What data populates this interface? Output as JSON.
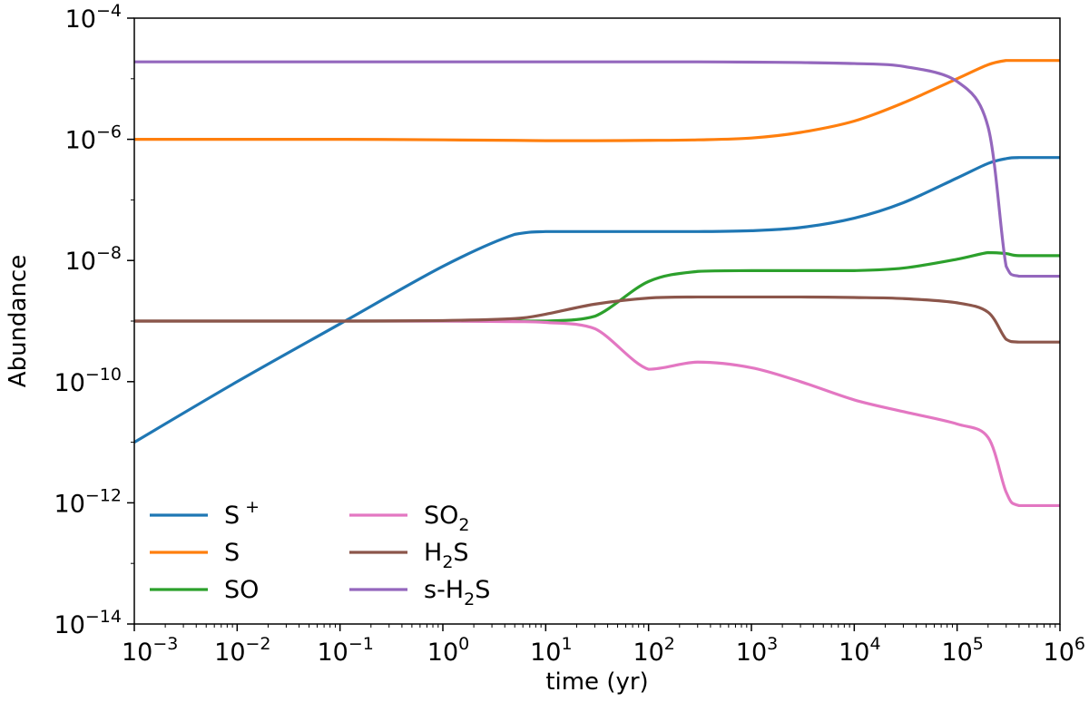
{
  "chart_data": {
    "type": "line",
    "title": "",
    "xlabel": "time (yr)",
    "ylabel": "Abundance",
    "xscale": "log",
    "yscale": "log",
    "xlim": [
      0.001,
      1000000
    ],
    "ylim": [
      1e-14,
      0.0001
    ],
    "grid": false,
    "legend_position": "lower-left",
    "legend_columns": 2,
    "x_ticks": [
      {
        "base": "10",
        "exp": "−3"
      },
      {
        "base": "10",
        "exp": "−2"
      },
      {
        "base": "10",
        "exp": "−1"
      },
      {
        "base": "10",
        "exp": "0"
      },
      {
        "base": "10",
        "exp": "1"
      },
      {
        "base": "10",
        "exp": "2"
      },
      {
        "base": "10",
        "exp": "3"
      },
      {
        "base": "10",
        "exp": "4"
      },
      {
        "base": "10",
        "exp": "5"
      },
      {
        "base": "10",
        "exp": "6"
      }
    ],
    "y_ticks": [
      {
        "base": "10",
        "exp": "−14"
      },
      {
        "base": "10",
        "exp": "−12"
      },
      {
        "base": "10",
        "exp": "−10"
      },
      {
        "base": "10",
        "exp": "−8"
      },
      {
        "base": "10",
        "exp": "−6"
      },
      {
        "base": "10",
        "exp": "−4"
      }
    ],
    "x": [
      0.001,
      0.01,
      0.1,
      1,
      5,
      10,
      30,
      100,
      300,
      1000,
      3000,
      10000,
      30000,
      100000,
      200000,
      300000,
      400000,
      1000000
    ],
    "series": [
      {
        "name": "S+",
        "label_main": "S",
        "label_sup": "+",
        "label_sub": "",
        "label_tail": "",
        "color": "#1f77b4",
        "values": [
          1e-11,
          1e-10,
          9e-10,
          8e-09,
          2.7e-08,
          3e-08,
          3e-08,
          3e-08,
          3e-08,
          3.1e-08,
          3.5e-08,
          5e-08,
          9e-08,
          2.3e-07,
          4e-07,
          4.8e-07,
          5e-07,
          5e-07
        ]
      },
      {
        "name": "S",
        "label_main": "S",
        "label_sup": "",
        "label_sub": "",
        "label_tail": "",
        "color": "#ff7f0e",
        "values": [
          1e-06,
          1e-06,
          1e-06,
          9.8e-07,
          9.6e-07,
          9.5e-07,
          9.5e-07,
          9.6e-07,
          9.8e-07,
          1.05e-06,
          1.3e-06,
          2e-06,
          4e-06,
          1e-05,
          1.7e-05,
          2e-05,
          2e-05,
          2e-05
        ]
      },
      {
        "name": "SO",
        "label_main": "SO",
        "label_sup": "",
        "label_sub": "",
        "label_tail": "",
        "color": "#2ca02c",
        "values": [
          1e-09,
          1e-09,
          1e-09,
          1e-09,
          1e-09,
          1e-09,
          1.2e-09,
          4.5e-09,
          6.6e-09,
          6.8e-09,
          6.8e-09,
          6.8e-09,
          7.5e-09,
          1.05e-08,
          1.35e-08,
          1.3e-08,
          1.2e-08,
          1.2e-08
        ]
      },
      {
        "name": "SO2",
        "label_main": "SO",
        "label_sup": "",
        "label_sub": "2",
        "label_tail": "",
        "color": "#e377c2",
        "values": [
          1e-09,
          1e-09,
          1e-09,
          1e-09,
          9.8e-10,
          9.5e-10,
          7.5e-10,
          1.6e-10,
          2.1e-10,
          1.7e-10,
          1e-10,
          5e-11,
          3.2e-11,
          2e-11,
          1.2e-11,
          1.5e-12,
          9e-13,
          9e-13
        ]
      },
      {
        "name": "H2S",
        "label_main": "H",
        "label_sup": "",
        "label_sub": "2",
        "label_tail": "S",
        "color": "#8c564b",
        "values": [
          1e-09,
          1e-09,
          1e-09,
          1.02e-09,
          1.1e-09,
          1.3e-09,
          1.9e-09,
          2.4e-09,
          2.5e-09,
          2.5e-09,
          2.5e-09,
          2.45e-09,
          2.35e-09,
          2e-09,
          1.4e-09,
          5e-10,
          4.5e-10,
          4.5e-10
        ]
      },
      {
        "name": "s-H2S",
        "label_main": "s-H",
        "label_sup": "",
        "label_sub": "2",
        "label_tail": "S",
        "color": "#9467bd",
        "values": [
          1.9e-05,
          1.9e-05,
          1.9e-05,
          1.9e-05,
          1.9e-05,
          1.9e-05,
          1.9e-05,
          1.9e-05,
          1.9e-05,
          1.88e-05,
          1.85e-05,
          1.78e-05,
          1.6e-05,
          9e-06,
          1.6e-06,
          8e-09,
          5.5e-09,
          5.5e-09
        ]
      }
    ]
  }
}
